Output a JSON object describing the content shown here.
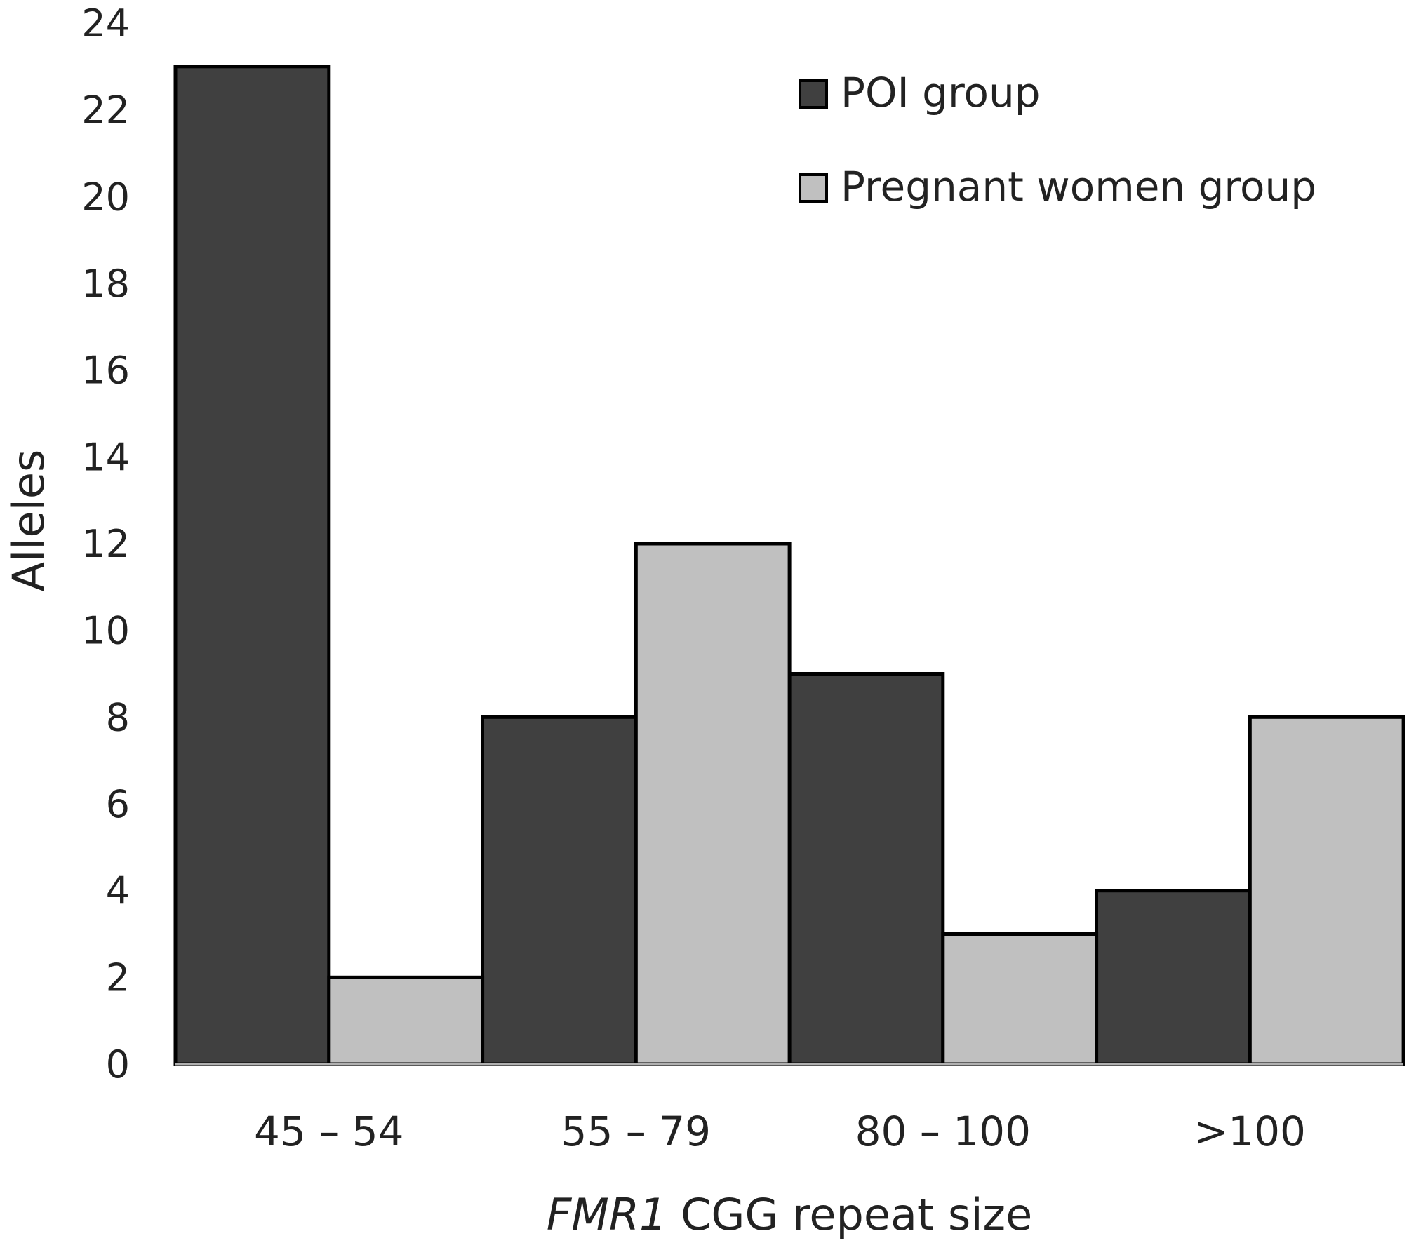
{
  "chart_data": {
    "type": "bar",
    "categories": [
      "45 – 54",
      "55 – 79",
      "80 – 100",
      ">100"
    ],
    "series": [
      {
        "name": "POI group",
        "values": [
          23,
          8,
          9,
          4
        ]
      },
      {
        "name": "Pregnant women group",
        "values": [
          2,
          12,
          3,
          8
        ]
      }
    ],
    "title": "",
    "xlabel_italic": "FMR1",
    "xlabel_rest": " CGG repeat size",
    "ylabel": "Alleles",
    "ylim": [
      0,
      24
    ],
    "yticks": [
      0,
      2,
      4,
      6,
      8,
      10,
      12,
      14,
      16,
      18,
      20,
      22,
      24
    ],
    "grid": false,
    "legend_position": "top-right",
    "colors": {
      "POI group": "#404040",
      "Pregnant women group": "#c0c0c0",
      "bar_outline": "#000000",
      "axis": "#b0b0b0",
      "text": "#222222"
    }
  }
}
